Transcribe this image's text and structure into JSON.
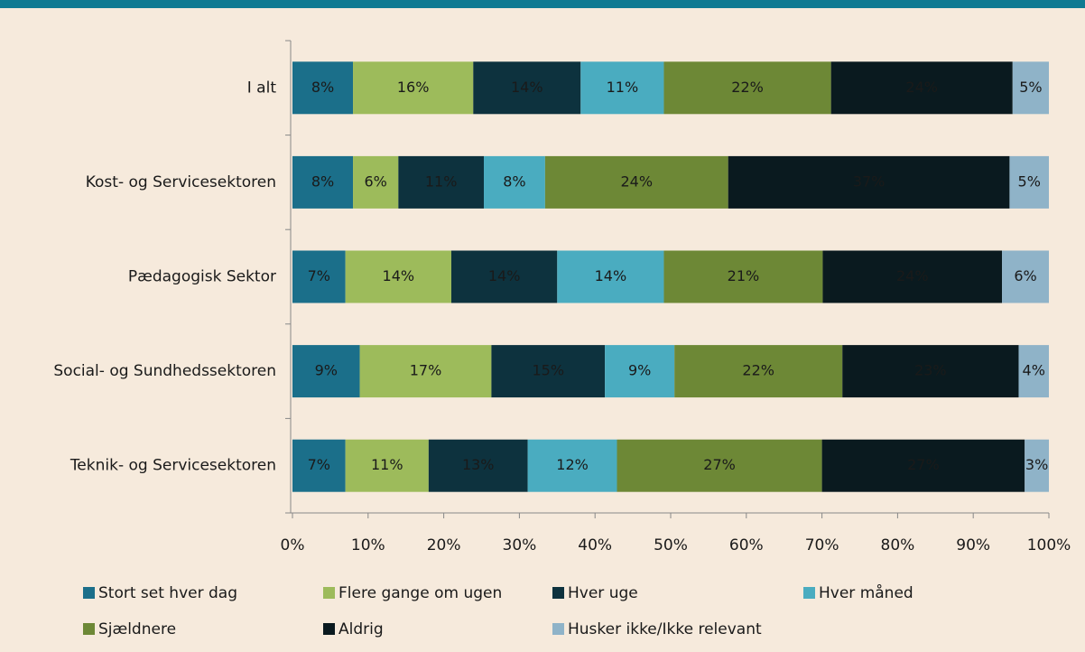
{
  "chart_data": {
    "type": "stacked_barh",
    "categories": [
      "I alt",
      "Kost- og Servicesektoren",
      "Pædagogisk Sektor",
      "Social- og Sundhedssektoren",
      "Teknik- og Servicesektoren"
    ],
    "series": [
      {
        "name": "Stort set hver dag",
        "color": "#1b6f8a",
        "label_color": "#ffffff",
        "values": [
          8.0,
          8.0,
          7.0,
          8.9,
          7.0
        ],
        "value_labels": [
          "8%",
          "8%",
          "7%",
          "9%",
          "7%"
        ]
      },
      {
        "name": "Flere gange om ugen",
        "color": "#9dbb5b",
        "label_color": "#ffffff",
        "values": [
          15.9,
          6.0,
          14.0,
          17.4,
          11.0
        ],
        "value_labels": [
          "16%",
          "6%",
          "14%",
          "17%",
          "11%"
        ]
      },
      {
        "name": "Hver uge",
        "color": "#0d323e",
        "label_color": "#ffffff",
        "values": [
          14.2,
          11.3,
          14.0,
          15.0,
          13.1
        ],
        "value_labels": [
          "14%",
          "11%",
          "14%",
          "15%",
          "13%"
        ]
      },
      {
        "name": "Hver måned",
        "color": "#4aacc0",
        "label_color": "#ffffff",
        "values": [
          11.0,
          8.1,
          14.1,
          9.2,
          11.8
        ],
        "value_labels": [
          "11%",
          "8%",
          "14%",
          "9%",
          "12%"
        ]
      },
      {
        "name": "Sjældnere",
        "color": "#6d8836",
        "label_color": "#ffffff",
        "values": [
          22.1,
          24.2,
          21.0,
          22.2,
          27.1
        ],
        "value_labels": [
          "22%",
          "24%",
          "21%",
          "22%",
          "27%"
        ]
      },
      {
        "name": "Aldrig",
        "color": "#0a1a1f",
        "label_color": "#ffffff",
        "values": [
          24.0,
          37.2,
          23.7,
          23.3,
          26.8
        ],
        "value_labels": [
          "24%",
          "37%",
          "24%",
          "23%",
          "27%"
        ]
      },
      {
        "name": "Husker ikke/Ikke relevant",
        "color": "#8fb3c8",
        "label_color": "#1a1a1a",
        "values": [
          4.8,
          5.2,
          6.2,
          4.0,
          3.2
        ],
        "value_labels": [
          "5%",
          "5%",
          "6%",
          "4%",
          "3%"
        ]
      }
    ],
    "xlim": [
      0,
      100
    ],
    "xticks": [
      {
        "value": 0,
        "label": "0%"
      },
      {
        "value": 10,
        "label": "10%"
      },
      {
        "value": 20,
        "label": "20%"
      },
      {
        "value": 30,
        "label": "30%"
      },
      {
        "value": 40,
        "label": "40%"
      },
      {
        "value": 50,
        "label": "50%"
      },
      {
        "value": 60,
        "label": "60%"
      },
      {
        "value": 70,
        "label": "70%"
      },
      {
        "value": 80,
        "label": "80%"
      },
      {
        "value": 90,
        "label": "90%"
      },
      {
        "value": 100,
        "label": "100%"
      }
    ],
    "legend": "bottom"
  }
}
